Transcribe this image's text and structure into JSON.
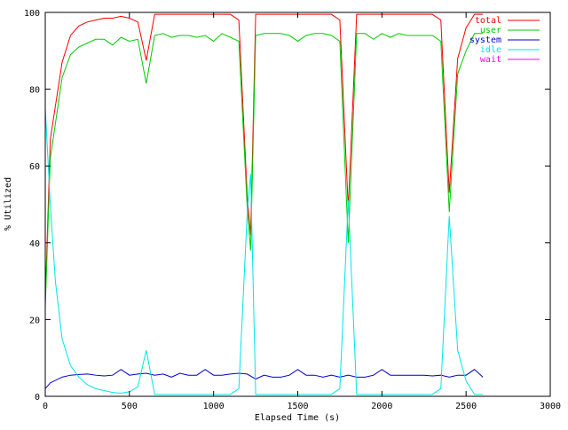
{
  "chart_data": {
    "type": "line",
    "title": "",
    "xlabel": "Elapsed Time (s)",
    "ylabel": "% Utilized",
    "xlim": [
      0,
      3000
    ],
    "ylim": [
      0,
      100
    ],
    "x_ticks": [
      0,
      500,
      1000,
      1500,
      2000,
      2500,
      3000
    ],
    "y_ticks": [
      0,
      20,
      40,
      60,
      80,
      100
    ],
    "grid": false,
    "legend_position": "top-right",
    "series": [
      {
        "name": "total",
        "color": "#ff0000",
        "points": [
          [
            0,
            25
          ],
          [
            30,
            67
          ],
          [
            100,
            87
          ],
          [
            150,
            94
          ],
          [
            200,
            96.5
          ],
          [
            250,
            97.5
          ],
          [
            300,
            98
          ],
          [
            350,
            98.5
          ],
          [
            400,
            98.5
          ],
          [
            450,
            99
          ],
          [
            500,
            98.5
          ],
          [
            550,
            97.5
          ],
          [
            600,
            87.5
          ],
          [
            650,
            99.5
          ],
          [
            700,
            99.5
          ],
          [
            750,
            99.5
          ],
          [
            800,
            99.5
          ],
          [
            850,
            99.5
          ],
          [
            900,
            99.5
          ],
          [
            950,
            99.5
          ],
          [
            1000,
            99.5
          ],
          [
            1050,
            99.5
          ],
          [
            1100,
            99.5
          ],
          [
            1150,
            98
          ],
          [
            1200,
            52
          ],
          [
            1220,
            42
          ],
          [
            1250,
            99.5
          ],
          [
            1300,
            99.5
          ],
          [
            1350,
            99.5
          ],
          [
            1400,
            99.5
          ],
          [
            1450,
            99.5
          ],
          [
            1500,
            99.5
          ],
          [
            1550,
            99.5
          ],
          [
            1600,
            99.5
          ],
          [
            1650,
            99.5
          ],
          [
            1700,
            99.5
          ],
          [
            1750,
            98
          ],
          [
            1800,
            49
          ],
          [
            1850,
            99.5
          ],
          [
            1900,
            99.5
          ],
          [
            1950,
            99.5
          ],
          [
            2000,
            99.5
          ],
          [
            2050,
            99.5
          ],
          [
            2100,
            99.5
          ],
          [
            2150,
            99.5
          ],
          [
            2200,
            99.5
          ],
          [
            2250,
            99.5
          ],
          [
            2300,
            99.5
          ],
          [
            2350,
            98
          ],
          [
            2400,
            53
          ],
          [
            2450,
            88
          ],
          [
            2500,
            96
          ],
          [
            2550,
            99.5
          ],
          [
            2600,
            99.5
          ]
        ]
      },
      {
        "name": "user",
        "color": "#00cc00",
        "points": [
          [
            0,
            23
          ],
          [
            30,
            62
          ],
          [
            100,
            83
          ],
          [
            150,
            89
          ],
          [
            200,
            91
          ],
          [
            250,
            92
          ],
          [
            300,
            93
          ],
          [
            350,
            93
          ],
          [
            400,
            91.5
          ],
          [
            450,
            93.5
          ],
          [
            500,
            92.5
          ],
          [
            550,
            93
          ],
          [
            600,
            81.5
          ],
          [
            650,
            94
          ],
          [
            700,
            94.5
          ],
          [
            750,
            93.5
          ],
          [
            800,
            94
          ],
          [
            850,
            94
          ],
          [
            900,
            93.5
          ],
          [
            950,
            94
          ],
          [
            1000,
            92.5
          ],
          [
            1050,
            94.5
          ],
          [
            1100,
            93.5
          ],
          [
            1150,
            92.5
          ],
          [
            1200,
            49
          ],
          [
            1220,
            38
          ],
          [
            1250,
            94
          ],
          [
            1300,
            94.5
          ],
          [
            1350,
            94.5
          ],
          [
            1400,
            94.5
          ],
          [
            1450,
            94
          ],
          [
            1500,
            92.5
          ],
          [
            1550,
            94
          ],
          [
            1600,
            94.5
          ],
          [
            1650,
            94.5
          ],
          [
            1700,
            94
          ],
          [
            1750,
            92.5
          ],
          [
            1800,
            40
          ],
          [
            1850,
            94.5
          ],
          [
            1900,
            94.5
          ],
          [
            1950,
            93
          ],
          [
            2000,
            94.5
          ],
          [
            2050,
            93.5
          ],
          [
            2100,
            94.5
          ],
          [
            2150,
            94
          ],
          [
            2200,
            94
          ],
          [
            2250,
            94
          ],
          [
            2300,
            94
          ],
          [
            2350,
            92.5
          ],
          [
            2400,
            48
          ],
          [
            2450,
            84
          ],
          [
            2500,
            90
          ],
          [
            2550,
            94.5
          ],
          [
            2600,
            94.5
          ]
        ]
      },
      {
        "name": "system",
        "color": "#0000cc",
        "points": [
          [
            0,
            2
          ],
          [
            30,
            3.5
          ],
          [
            100,
            5
          ],
          [
            150,
            5.5
          ],
          [
            200,
            5.7
          ],
          [
            250,
            5.8
          ],
          [
            300,
            5.5
          ],
          [
            350,
            5.3
          ],
          [
            400,
            5.5
          ],
          [
            450,
            7
          ],
          [
            500,
            5.5
          ],
          [
            550,
            5.8
          ],
          [
            600,
            6
          ],
          [
            650,
            5.5
          ],
          [
            700,
            5.8
          ],
          [
            750,
            5
          ],
          [
            800,
            6
          ],
          [
            850,
            5.5
          ],
          [
            900,
            5.5
          ],
          [
            950,
            7
          ],
          [
            1000,
            5.5
          ],
          [
            1050,
            5.5
          ],
          [
            1100,
            5.8
          ],
          [
            1150,
            6
          ],
          [
            1200,
            5.8
          ],
          [
            1250,
            4.5
          ],
          [
            1300,
            5.5
          ],
          [
            1350,
            5
          ],
          [
            1400,
            5
          ],
          [
            1450,
            5.5
          ],
          [
            1500,
            7
          ],
          [
            1550,
            5.5
          ],
          [
            1600,
            5.5
          ],
          [
            1650,
            5
          ],
          [
            1700,
            5.5
          ],
          [
            1750,
            5
          ],
          [
            1800,
            5.5
          ],
          [
            1850,
            5
          ],
          [
            1900,
            5
          ],
          [
            1950,
            5.5
          ],
          [
            2000,
            7
          ],
          [
            2050,
            5.5
          ],
          [
            2100,
            5.5
          ],
          [
            2150,
            5.5
          ],
          [
            2200,
            5.5
          ],
          [
            2250,
            5.5
          ],
          [
            2300,
            5.3
          ],
          [
            2350,
            5.5
          ],
          [
            2400,
            5
          ],
          [
            2450,
            5.5
          ],
          [
            2500,
            5.5
          ],
          [
            2550,
            7
          ],
          [
            2600,
            5
          ]
        ]
      },
      {
        "name": "idle",
        "color": "#00e5e5",
        "points": [
          [
            0,
            75
          ],
          [
            30,
            50
          ],
          [
            60,
            30
          ],
          [
            100,
            15
          ],
          [
            150,
            8
          ],
          [
            200,
            5
          ],
          [
            250,
            3
          ],
          [
            300,
            2
          ],
          [
            350,
            1.5
          ],
          [
            400,
            1
          ],
          [
            450,
            0.8
          ],
          [
            500,
            1.2
          ],
          [
            550,
            2.5
          ],
          [
            600,
            12
          ],
          [
            650,
            0.5
          ],
          [
            700,
            0.5
          ],
          [
            750,
            0.5
          ],
          [
            800,
            0.5
          ],
          [
            850,
            0.5
          ],
          [
            900,
            0.5
          ],
          [
            950,
            0.5
          ],
          [
            1000,
            0.5
          ],
          [
            1050,
            0.5
          ],
          [
            1100,
            0.5
          ],
          [
            1150,
            2
          ],
          [
            1200,
            48
          ],
          [
            1220,
            58
          ],
          [
            1250,
            0.5
          ],
          [
            1300,
            0.5
          ],
          [
            1350,
            0.5
          ],
          [
            1400,
            0.5
          ],
          [
            1450,
            0.5
          ],
          [
            1500,
            0.5
          ],
          [
            1550,
            0.5
          ],
          [
            1600,
            0.5
          ],
          [
            1650,
            0.5
          ],
          [
            1700,
            0.5
          ],
          [
            1750,
            2
          ],
          [
            1800,
            51
          ],
          [
            1850,
            0.5
          ],
          [
            1900,
            0.5
          ],
          [
            1950,
            0.5
          ],
          [
            2000,
            0.5
          ],
          [
            2050,
            0.5
          ],
          [
            2100,
            0.5
          ],
          [
            2150,
            0.5
          ],
          [
            2200,
            0.5
          ],
          [
            2250,
            0.5
          ],
          [
            2300,
            0.5
          ],
          [
            2350,
            2
          ],
          [
            2400,
            47
          ],
          [
            2450,
            12
          ],
          [
            2500,
            4
          ],
          [
            2550,
            0.5
          ],
          [
            2600,
            0.5
          ]
        ]
      },
      {
        "name": "wait",
        "color": "#ff00ff",
        "points": [
          [
            0,
            0
          ],
          [
            600,
            0
          ],
          [
            1200,
            0
          ],
          [
            1800,
            0
          ],
          [
            2400,
            0
          ],
          [
            2600,
            0
          ]
        ]
      }
    ]
  }
}
